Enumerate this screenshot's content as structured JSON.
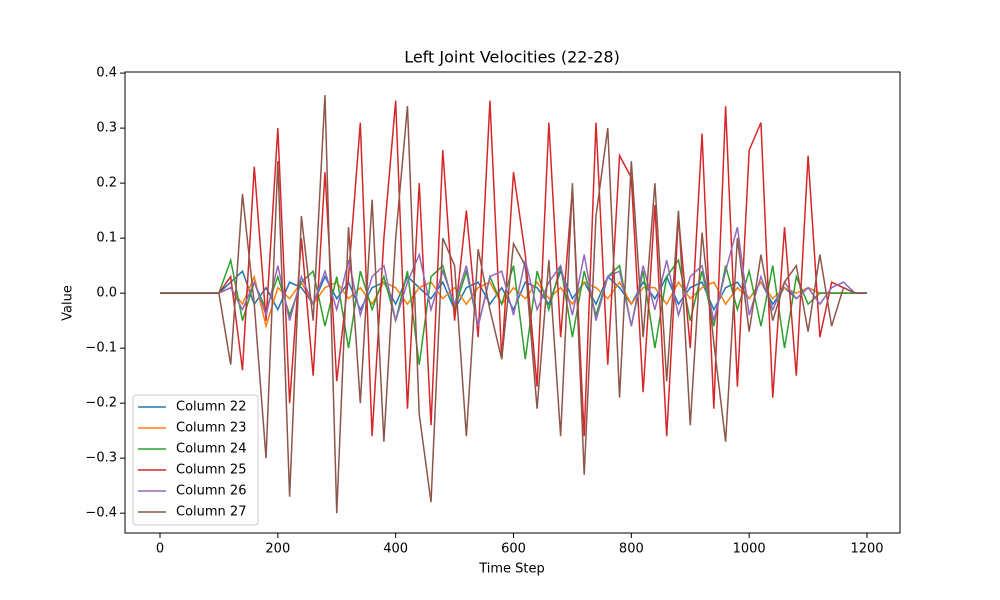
{
  "chart_data": {
    "type": "line",
    "title": "Left Joint Velocities (22-28)",
    "x_label": "Time Step",
    "y_label": "Value",
    "x": [
      0,
      20,
      40,
      60,
      80,
      100,
      120,
      140,
      160,
      180,
      200,
      220,
      240,
      260,
      280,
      300,
      320,
      340,
      360,
      380,
      400,
      420,
      440,
      460,
      480,
      500,
      520,
      540,
      560,
      580,
      600,
      620,
      640,
      660,
      680,
      700,
      720,
      740,
      760,
      780,
      800,
      820,
      840,
      860,
      880,
      900,
      920,
      940,
      960,
      980,
      1000,
      1020,
      1040,
      1060,
      1080,
      1100,
      1120,
      1140,
      1160,
      1180,
      1200
    ],
    "xlim": [
      -59.4,
      1256
    ],
    "ylim": [
      -0.436,
      0.402
    ],
    "xticks": [
      0,
      200,
      400,
      600,
      800,
      1000,
      1200
    ],
    "yticks": [
      {
        "value": -0.4,
        "label": "−0.4"
      },
      {
        "value": -0.3,
        "label": "−0.3"
      },
      {
        "value": -0.2,
        "label": "−0.2"
      },
      {
        "value": -0.1,
        "label": "−0.1"
      },
      {
        "value": 0,
        "label": "0.0"
      },
      0.1,
      0.2,
      0.3,
      0.4
    ],
    "legend": "lower left",
    "series": [
      {
        "name": "Column 22",
        "color": "#1f77b4",
        "values": [
          0,
          0,
          0,
          0,
          0,
          0,
          0.02,
          0.04,
          -0.02,
          0.01,
          -0.03,
          0.02,
          0.01,
          -0.02,
          0.03,
          -0.01,
          0.02,
          -0.03,
          0.01,
          0.02,
          -0.02,
          0.03,
          0.01,
          -0.01,
          0.02,
          -0.03,
          0.01,
          0.02,
          -0.02,
          0.01,
          -0.03,
          0.02,
          0.01,
          -0.02,
          0.04,
          -0.01,
          0.02,
          -0.02,
          0.03,
          0.01,
          -0.02,
          0.02,
          -0.01,
          0.03,
          -0.02,
          0.01,
          0.02,
          -0.03,
          0.01,
          0.02,
          -0.01,
          0.02,
          -0.02,
          0.01,
          -0.01,
          0.01,
          0,
          0,
          0,
          0,
          0
        ]
      },
      {
        "name": "Column 23",
        "color": "#ff7f0e",
        "values": [
          0,
          0,
          0,
          0,
          0,
          0,
          0.01,
          -0.02,
          0.03,
          -0.06,
          0.01,
          -0.01,
          0.02,
          -0.02,
          0.01,
          0.02,
          -0.01,
          0.01,
          -0.02,
          0.02,
          0.01,
          -0.02,
          0.01,
          0.02,
          -0.01,
          0.01,
          -0.02,
          0.01,
          0.02,
          -0.02,
          0.01,
          -0.01,
          0.02,
          -0.01,
          0.01,
          -0.02,
          0.02,
          0.01,
          -0.01,
          0.02,
          -0.02,
          0.01,
          0.01,
          -0.02,
          0.02,
          -0.01,
          0.01,
          0.02,
          -0.02,
          0.01,
          -0.01,
          0.02,
          -0.01,
          0.01,
          0,
          0.01,
          0,
          0,
          0,
          0,
          0
        ]
      },
      {
        "name": "Column 24",
        "color": "#2ca02c",
        "values": [
          0,
          0,
          0,
          0,
          0,
          0,
          0.06,
          -0.05,
          0.02,
          -0.03,
          0.03,
          -0.04,
          0.02,
          0.04,
          -0.06,
          0.03,
          -0.1,
          0.04,
          -0.03,
          0.03,
          -0.05,
          0.04,
          -0.13,
          0.03,
          0.05,
          -0.03,
          0.04,
          -0.06,
          0.03,
          -0.02,
          0.05,
          -0.12,
          0.04,
          -0.03,
          0.05,
          -0.08,
          0.04,
          -0.04,
          0.03,
          0.05,
          -0.06,
          0.04,
          -0.1,
          0.03,
          0.06,
          -0.05,
          0.04,
          -0.06,
          0.05,
          -0.03,
          0.04,
          -0.06,
          0.05,
          -0.1,
          0.03,
          -0.02,
          0,
          0,
          0,
          0,
          0
        ]
      },
      {
        "name": "Column 25",
        "color": "#d62728",
        "values": [
          0,
          0,
          0,
          0,
          0,
          0,
          0.03,
          -0.14,
          0.23,
          -0.05,
          0.3,
          -0.2,
          0.1,
          -0.15,
          0.22,
          -0.16,
          0.03,
          0.31,
          -0.26,
          0.1,
          0.35,
          -0.21,
          0.2,
          -0.24,
          0.26,
          -0.05,
          0.15,
          -0.08,
          0.35,
          -0.12,
          0.22,
          0.07,
          -0.17,
          0.31,
          -0.08,
          0.19,
          -0.26,
          0.31,
          -0.13,
          0.25,
          0.21,
          -0.18,
          0.16,
          -0.26,
          0.14,
          -0.1,
          0.29,
          -0.21,
          0.34,
          -0.17,
          0.26,
          0.31,
          -0.19,
          0.12,
          -0.15,
          0.25,
          -0.08,
          0.02,
          0.01,
          0,
          0
        ]
      },
      {
        "name": "Column 26",
        "color": "#9467bd",
        "values": [
          0,
          0,
          0,
          0,
          0,
          0,
          0.01,
          -0.03,
          0.02,
          -0.04,
          0.05,
          -0.05,
          0.03,
          -0.02,
          0.04,
          -0.03,
          0.06,
          -0.04,
          0.03,
          0.05,
          -0.05,
          0.02,
          0.07,
          -0.03,
          0.04,
          -0.02,
          0.05,
          -0.06,
          0.03,
          0.04,
          -0.04,
          0.06,
          -0.03,
          0.02,
          0.05,
          -0.04,
          0.07,
          -0.05,
          0.03,
          0.04,
          -0.06,
          0.05,
          -0.03,
          0.06,
          -0.04,
          0.03,
          0.05,
          -0.05,
          0.04,
          0.12,
          -0.04,
          0.03,
          -0.03,
          0.02,
          -0.01,
          0.01,
          -0.02,
          0.01,
          0.02,
          0,
          0
        ]
      },
      {
        "name": "Column 27",
        "color": "#8c564b",
        "values": [
          0,
          0,
          0,
          0,
          0,
          0,
          -0.13,
          0.18,
          -0.02,
          -0.3,
          0.24,
          -0.37,
          0.14,
          -0.05,
          0.36,
          -0.4,
          0.12,
          -0.2,
          0.17,
          -0.27,
          0.1,
          0.34,
          -0.22,
          -0.38,
          0.1,
          0.05,
          -0.26,
          0.08,
          -0.03,
          -0.12,
          0.09,
          0.05,
          -0.21,
          0.06,
          -0.26,
          0.2,
          -0.33,
          0.14,
          0.3,
          -0.19,
          0.24,
          -0.08,
          0.2,
          -0.16,
          0.15,
          -0.24,
          0.11,
          -0.09,
          -0.27,
          0.1,
          -0.07,
          0.07,
          -0.05,
          0.02,
          0.05,
          -0.07,
          0.07,
          -0.06,
          0.01,
          0,
          0
        ]
      }
    ]
  }
}
